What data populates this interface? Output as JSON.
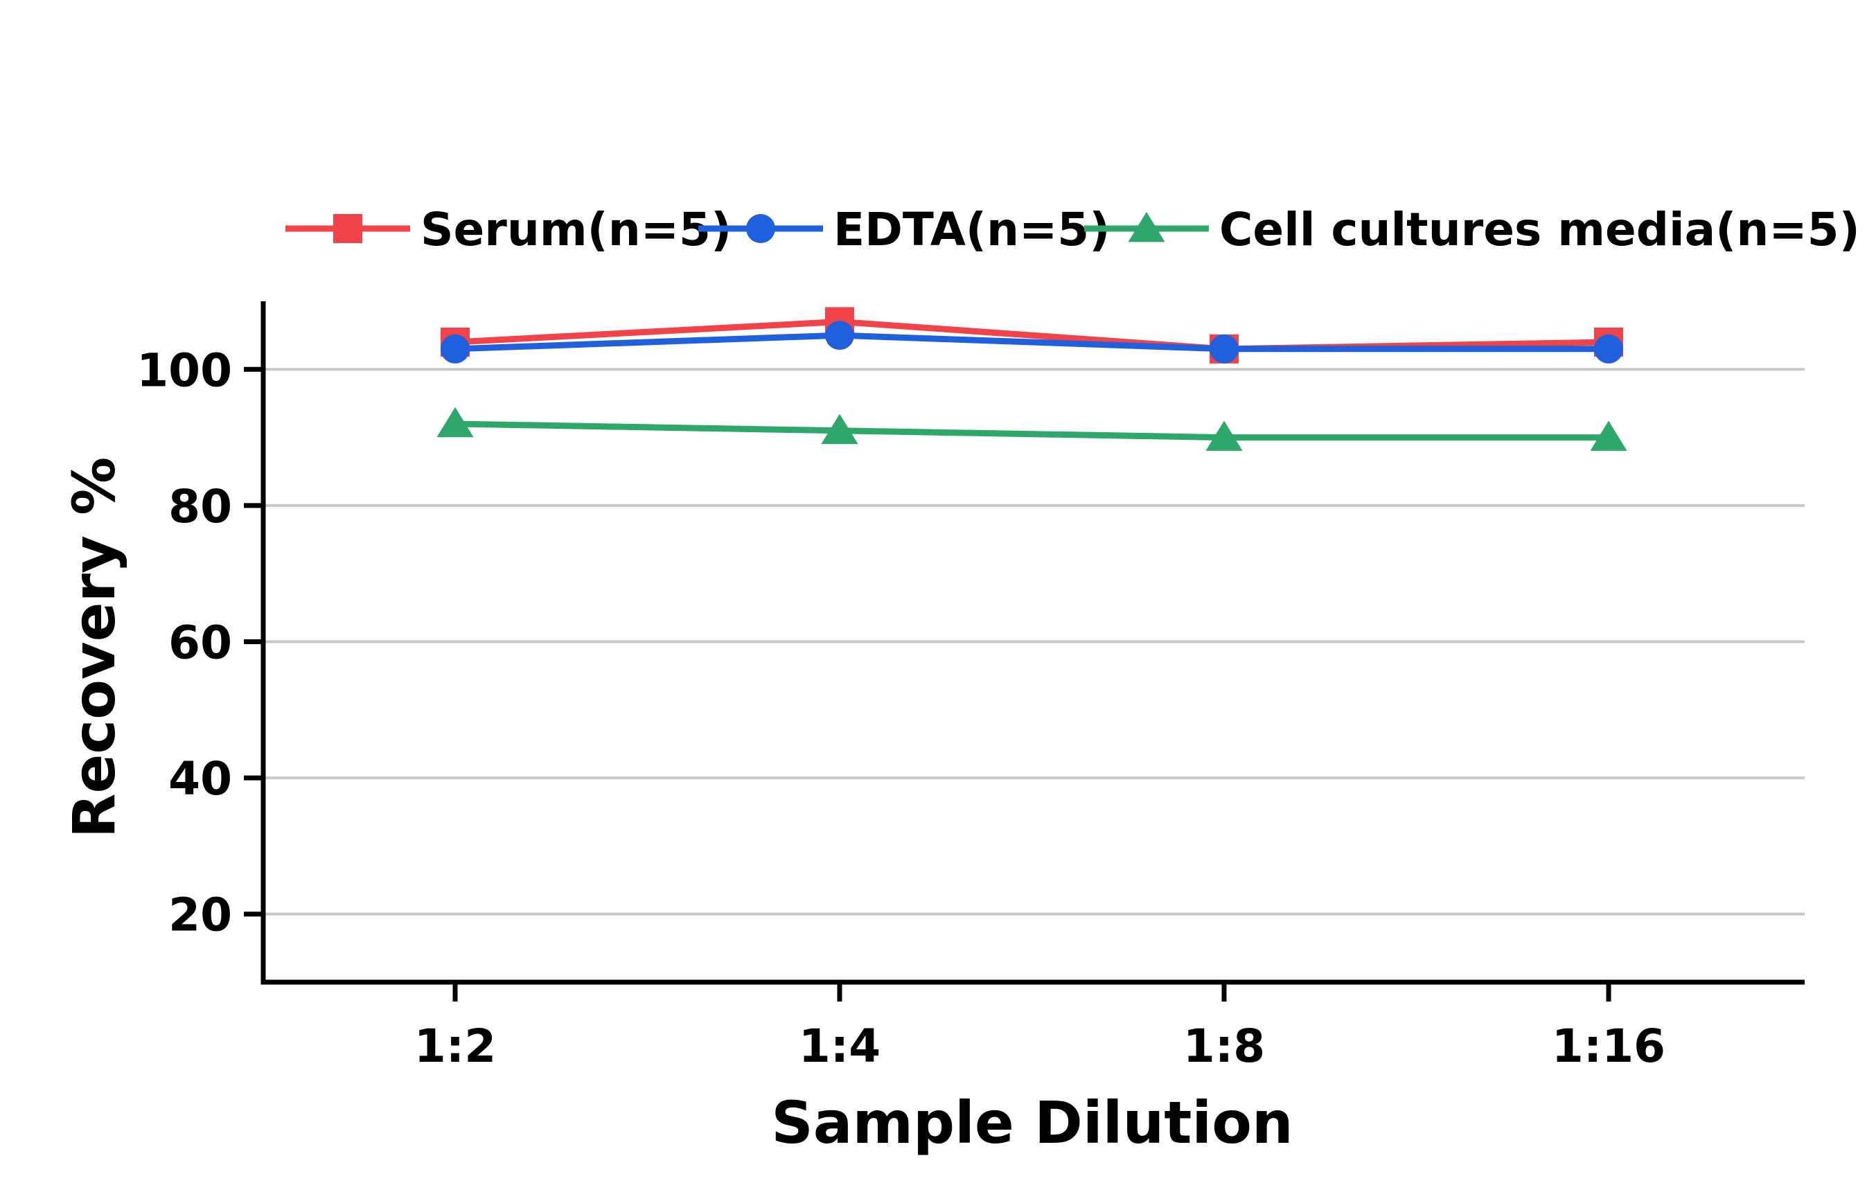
{
  "chart_data": {
    "type": "line",
    "title": "",
    "xlabel": "Sample Dilution",
    "ylabel": "Recovery %",
    "categories": [
      "1:2",
      "1:4",
      "1:8",
      "1:16"
    ],
    "ylim": [
      10,
      110
    ],
    "yticks": [
      20,
      40,
      60,
      80,
      100
    ],
    "grid": true,
    "legend_position": "top",
    "series": [
      {
        "name": "Serum(n=5)",
        "color": "#f0434a",
        "marker": "square",
        "values": [
          104,
          107,
          103,
          104
        ]
      },
      {
        "name": "EDTA(n=5)",
        "color": "#2060dc",
        "marker": "circle",
        "values": [
          103,
          105,
          103,
          103
        ]
      },
      {
        "name": "Cell cultures media(n=5)",
        "color": "#2ea86a",
        "marker": "triangle",
        "values": [
          92,
          91,
          90,
          90
        ]
      }
    ]
  }
}
